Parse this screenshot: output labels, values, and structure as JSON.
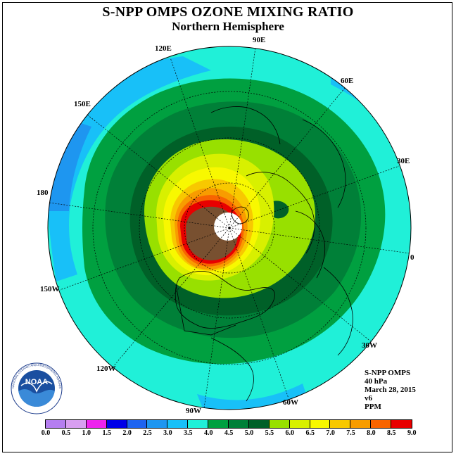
{
  "title": "S-NPP OMPS OZONE MIXING RATIO",
  "subtitle": "Northern Hemisphere",
  "longitude_labels": {
    "e120": "120E",
    "e90": "90E",
    "e60": "60E",
    "e150": "150E",
    "e30": "30E",
    "w180": "180",
    "zero": "0",
    "w150": "150W",
    "w30": "30W",
    "w120": "120W",
    "w90": "90W",
    "w60": "60W"
  },
  "info": {
    "instrument": "S-NPP OMPS",
    "level": "40 hPa",
    "date": "March 28, 2015",
    "version": "v6",
    "units": "PPM"
  },
  "logo": {
    "text": "NOAA",
    "ring_text": "NATIONAL OCEANIC AND ATMOSPHERIC ADMINISTRATION · U.S. DEPARTMENT OF COMMERCE"
  },
  "colorbar": {
    "ticks": [
      "0.0",
      "0.5",
      "1.0",
      "1.5",
      "2.0",
      "2.5",
      "3.0",
      "3.5",
      "4.0",
      "4.5",
      "5.0",
      "5.5",
      "6.0",
      "6.5",
      "7.0",
      "7.5",
      "8.0",
      "8.5",
      "9.0"
    ],
    "colors": [
      "#b57ef0",
      "#d89ef0",
      "#ee22ee",
      "#c000e0",
      "#0000e8",
      "#1e64f0",
      "#1e96f0",
      "#18c0f8",
      "#20f0d8",
      "#00a040",
      "#008038",
      "#006028",
      "#98e000",
      "#d8f000",
      "#f8f800",
      "#f8c800",
      "#f89c00",
      "#f86400",
      "#e80000",
      "#785030"
    ]
  },
  "colors": {
    "polar_night": "#ffffff",
    "ocean_outline": "#000000"
  }
}
